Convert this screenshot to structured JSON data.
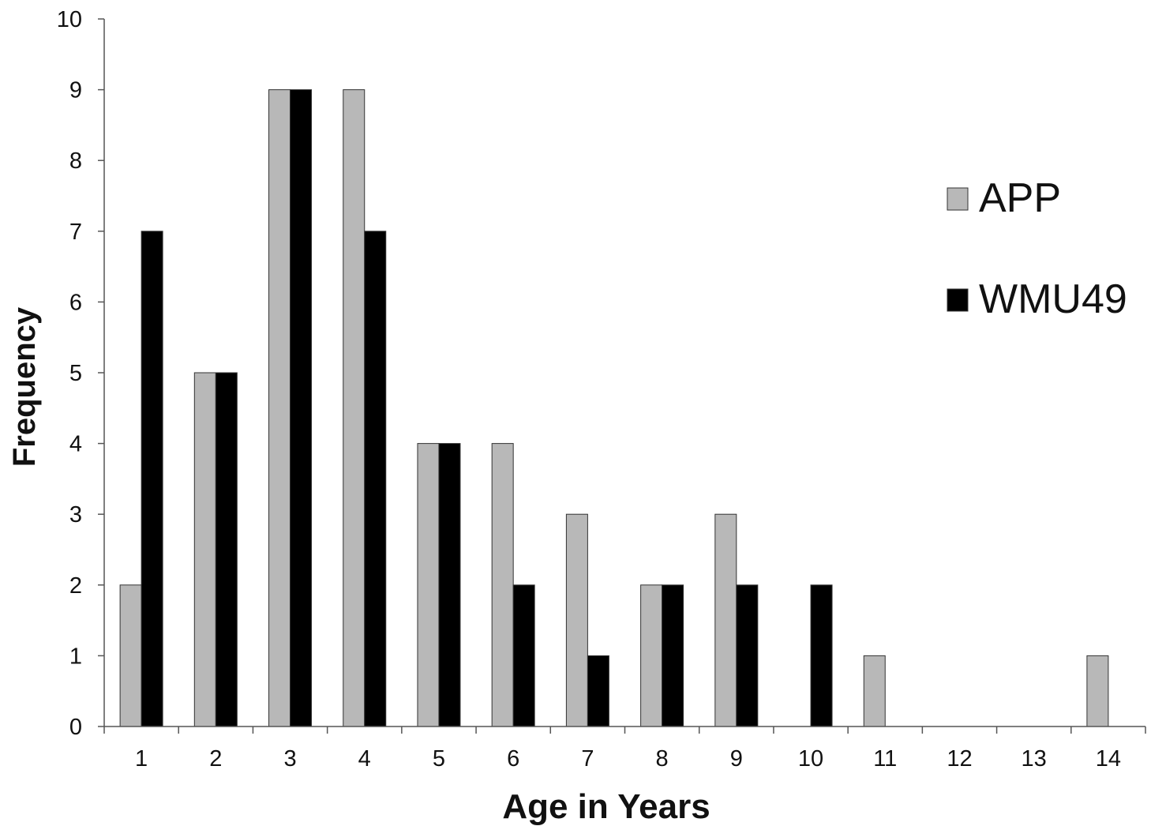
{
  "chart_data": {
    "type": "bar",
    "title": "",
    "xlabel": "Age in Years",
    "ylabel": "Frequency",
    "categories": [
      "1",
      "2",
      "3",
      "4",
      "5",
      "6",
      "7",
      "8",
      "9",
      "10",
      "11",
      "12",
      "13",
      "14"
    ],
    "series": [
      {
        "name": "APP",
        "color": "#b8b8b8",
        "values": [
          2,
          5,
          9,
          9,
          4,
          4,
          3,
          2,
          3,
          0,
          1,
          0,
          0,
          1
        ]
      },
      {
        "name": "WMU49",
        "color": "#000000",
        "values": [
          7,
          5,
          9,
          7,
          4,
          2,
          1,
          2,
          2,
          2,
          0,
          0,
          0,
          0
        ]
      }
    ],
    "ylim": [
      0,
      10
    ],
    "yticks": [
      0,
      1,
      2,
      3,
      4,
      5,
      6,
      7,
      8,
      9,
      10
    ],
    "grid": false,
    "legend_position": "top-right"
  }
}
